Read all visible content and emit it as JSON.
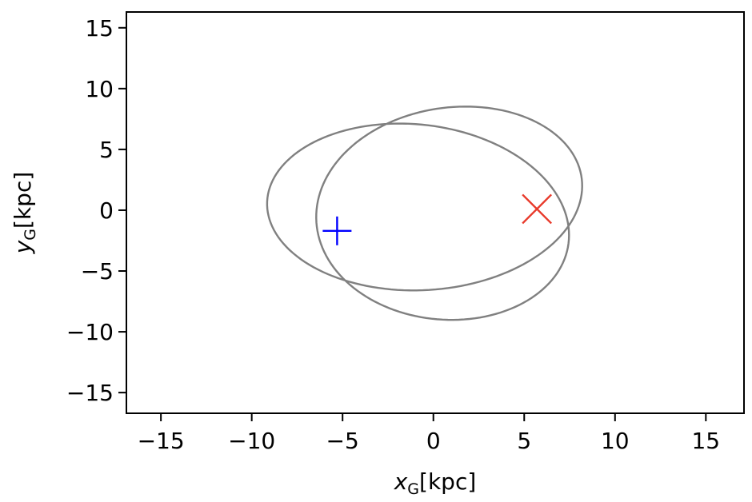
{
  "chart_data": {
    "type": "line",
    "title": "",
    "xlabel": {
      "main": "x",
      "sub": "G",
      "unit": "[kpc]"
    },
    "ylabel": {
      "main": "y",
      "sub": "G",
      "unit": "[kpc]"
    },
    "xlim": [
      -16.9,
      17.1
    ],
    "ylim": [
      -16.7,
      16.3
    ],
    "xticks": [
      -15,
      -10,
      -5,
      0,
      5,
      10,
      15
    ],
    "yticks": [
      -15,
      -10,
      -5,
      0,
      5,
      10,
      15
    ],
    "xtick_labels": [
      "−15",
      "−10",
      "−5",
      "0",
      "5",
      "10",
      "15"
    ],
    "ytick_labels": [
      "−15",
      "−10",
      "−5",
      "0",
      "5",
      "10",
      "15"
    ],
    "grid": false,
    "series": [
      {
        "kind": "orbit",
        "color": "#808080",
        "peri_kpc": 2.8,
        "apo_kpc": 15.6,
        "precession_deg_per_radial_period": 120,
        "radial_periods": 20,
        "start_phase_deg": 50
      },
      {
        "kind": "marker",
        "symbol": "plus",
        "color": "#0000ff",
        "x": -5.3,
        "y": -1.7
      },
      {
        "kind": "marker",
        "symbol": "x",
        "color": "#e8392a",
        "x": 5.7,
        "y": 0.1
      }
    ]
  }
}
